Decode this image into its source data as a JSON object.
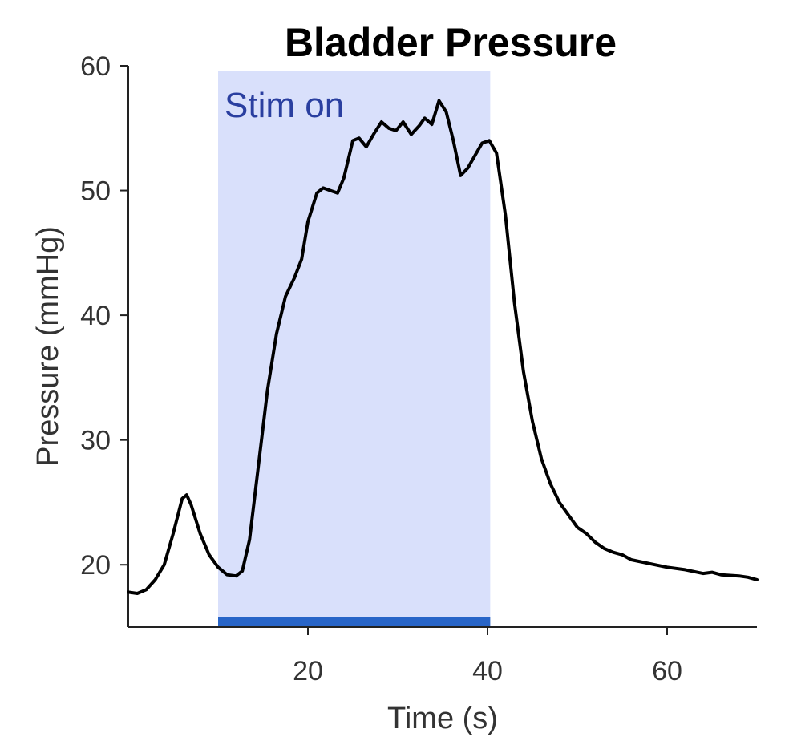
{
  "chart_data": {
    "type": "line",
    "title": "Bladder Pressure",
    "xlabel": "Time (s)",
    "ylabel": "Pressure (mmHg)",
    "xlim": [
      0,
      70
    ],
    "ylim": [
      15,
      60
    ],
    "xticks": [
      20,
      40,
      60
    ],
    "yticks": [
      20,
      30,
      40,
      50,
      60
    ],
    "grid": false,
    "shaded_region": {
      "x_start": 10,
      "x_end": 40.3,
      "label": "Stim on",
      "fill_color": "#d9e0fb",
      "bar_color": "#2865c8",
      "label_color": "#2a3fa0"
    },
    "series": [
      {
        "color": "#000000",
        "points": [
          [
            0,
            17.8
          ],
          [
            1,
            17.7
          ],
          [
            2,
            18.0
          ],
          [
            3,
            18.8
          ],
          [
            4,
            20.0
          ],
          [
            5,
            22.5
          ],
          [
            6,
            25.3
          ],
          [
            6.5,
            25.6
          ],
          [
            7,
            24.8
          ],
          [
            8,
            22.5
          ],
          [
            9,
            20.8
          ],
          [
            10,
            19.8
          ],
          [
            11,
            19.2
          ],
          [
            12,
            19.1
          ],
          [
            12.7,
            19.5
          ],
          [
            13.5,
            22.0
          ],
          [
            14.5,
            28.0
          ],
          [
            15.5,
            34.0
          ],
          [
            16.5,
            38.5
          ],
          [
            17.5,
            41.5
          ],
          [
            18.5,
            43.0
          ],
          [
            19.3,
            44.5
          ],
          [
            20,
            47.5
          ],
          [
            21,
            49.8
          ],
          [
            21.7,
            50.2
          ],
          [
            22.5,
            50.0
          ],
          [
            23.3,
            49.8
          ],
          [
            24,
            51.0
          ],
          [
            25,
            54.0
          ],
          [
            25.7,
            54.2
          ],
          [
            26.5,
            53.5
          ],
          [
            27.3,
            54.5
          ],
          [
            28.2,
            55.5
          ],
          [
            29,
            55.0
          ],
          [
            29.8,
            54.8
          ],
          [
            30.6,
            55.5
          ],
          [
            31.5,
            54.5
          ],
          [
            32.4,
            55.2
          ],
          [
            33,
            55.8
          ],
          [
            33.8,
            55.3
          ],
          [
            34.6,
            57.2
          ],
          [
            35.4,
            56.3
          ],
          [
            36.2,
            54.0
          ],
          [
            37,
            51.2
          ],
          [
            37.8,
            51.8
          ],
          [
            38.6,
            52.8
          ],
          [
            39.4,
            53.8
          ],
          [
            40.2,
            54.0
          ],
          [
            41,
            53.0
          ],
          [
            42,
            48.0
          ],
          [
            43,
            41.0
          ],
          [
            44,
            35.5
          ],
          [
            45,
            31.5
          ],
          [
            46,
            28.5
          ],
          [
            47,
            26.5
          ],
          [
            48,
            25.0
          ],
          [
            49,
            24.0
          ],
          [
            50,
            23.0
          ],
          [
            51,
            22.5
          ],
          [
            52,
            21.8
          ],
          [
            53,
            21.3
          ],
          [
            54,
            21.0
          ],
          [
            55,
            20.8
          ],
          [
            56,
            20.4
          ],
          [
            58,
            20.1
          ],
          [
            60,
            19.8
          ],
          [
            62,
            19.6
          ],
          [
            64,
            19.3
          ],
          [
            65,
            19.4
          ],
          [
            66,
            19.2
          ],
          [
            68,
            19.1
          ],
          [
            69,
            19.0
          ],
          [
            70,
            18.8
          ]
        ]
      }
    ]
  }
}
